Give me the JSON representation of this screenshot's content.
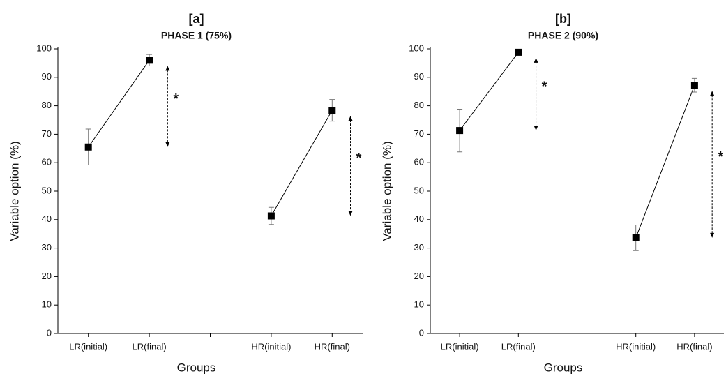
{
  "chart_data": [
    {
      "type": "line",
      "label": "[a]",
      "title": "PHASE 1 (75%)",
      "x_label": "Groups",
      "y_label": "Variable option (%)",
      "categories": [
        "LR(initial)",
        "LR(final)",
        null,
        "HR(initial)",
        "HR(final)"
      ],
      "values": [
        65.5,
        96,
        null,
        41.3,
        78.4
      ],
      "errors": [
        6.3,
        2,
        null,
        3,
        3.8
      ],
      "color": "#000000",
      "ylim": [
        0,
        100
      ],
      "yticks": [
        0,
        10,
        20,
        30,
        40,
        50,
        60,
        70,
        80,
        90,
        100
      ],
      "annotations": [
        "*",
        "*"
      ]
    },
    {
      "type": "line",
      "label": "[b]",
      "title": "PHASE 2 (90%)",
      "x_label": "Groups",
      "y_label": "Variable option (%)",
      "categories": [
        "LR(initial)",
        "LR(final)",
        null,
        "HR(initial)",
        "HR(final)"
      ],
      "values": [
        71.3,
        98.8,
        null,
        33.6,
        87.2
      ],
      "errors": [
        7.5,
        0.5,
        null,
        4.5,
        2.4
      ],
      "color": "#000000",
      "ylim": [
        0,
        100
      ],
      "yticks": [
        0,
        10,
        20,
        30,
        40,
        50,
        60,
        70,
        80,
        90,
        100
      ],
      "annotations": [
        "*",
        "*"
      ]
    }
  ]
}
